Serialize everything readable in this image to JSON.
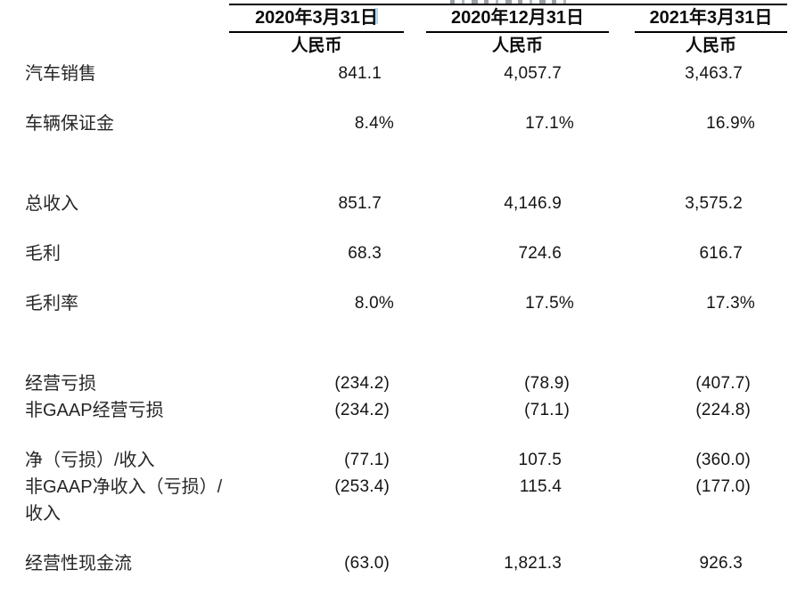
{
  "table": {
    "columns": [
      {
        "date": "2020年3月31日",
        "currency": "人民币"
      },
      {
        "date": "2020年12月31日",
        "currency": "人民币"
      },
      {
        "date": "2021年3月31日",
        "currency": "人民币"
      }
    ],
    "rows": [
      {
        "label": "汽车销售",
        "values": [
          "841.1",
          "4,057.7",
          "3,463.7"
        ]
      },
      {
        "label": "车辆保证金",
        "values": [
          "8.4%",
          "17.1%",
          "16.9%"
        ]
      },
      {
        "label": "总收入",
        "values": [
          "851.7",
          "4,146.9",
          "3,575.2"
        ]
      },
      {
        "label": "毛利",
        "values": [
          "68.3",
          "724.6",
          "616.7"
        ]
      },
      {
        "label": "毛利率",
        "values": [
          "8.0%",
          "17.5%",
          "17.3%"
        ]
      },
      {
        "label": "经营亏损",
        "values": [
          "(234.2)",
          "(78.9)",
          "(407.7)"
        ]
      },
      {
        "label": "非GAAP经营亏损",
        "values": [
          "(234.2)",
          "(71.1)",
          "(224.8)"
        ]
      },
      {
        "label": "净（亏损）/收入",
        "values": [
          "(77.1)",
          "107.5",
          "(360.0)"
        ]
      },
      {
        "label": "非GAAP净收入（亏损）/收入",
        "values": [
          "(253.4)",
          "115.4",
          "(177.0)"
        ]
      },
      {
        "label": "经营性现金流",
        "values": [
          "(63.0)",
          "1,821.3",
          "926.3"
        ]
      }
    ]
  },
  "colors": {
    "background": "#ffffff",
    "text": "#1b1b1b",
    "rule": "#000000",
    "cursor_artifact": "#b5d8ef",
    "remnant_gray": "#9aa0a6"
  }
}
